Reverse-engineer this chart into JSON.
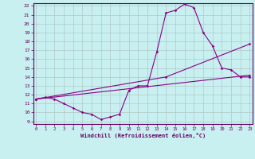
{
  "xlabel": "Windchill (Refroidissement éolien,°C)",
  "bg_color": "#c8f0f0",
  "line_color": "#880088",
  "grid_color": "#b0c8c8",
  "ylim": [
    9,
    22
  ],
  "xlim": [
    0,
    23
  ],
  "yticks": [
    9,
    10,
    11,
    12,
    13,
    14,
    15,
    16,
    17,
    18,
    19,
    20,
    21,
    22
  ],
  "xticks": [
    0,
    1,
    2,
    3,
    4,
    5,
    6,
    7,
    8,
    9,
    10,
    11,
    12,
    13,
    14,
    15,
    16,
    17,
    18,
    19,
    20,
    21,
    22,
    23
  ],
  "line1_x": [
    0,
    1,
    2,
    3,
    4,
    5,
    6,
    7,
    8,
    9,
    10,
    11,
    12,
    13,
    14,
    15,
    16,
    17,
    18,
    19,
    20,
    21,
    22,
    23
  ],
  "line1_y": [
    11.5,
    11.7,
    11.5,
    11.0,
    10.5,
    10.0,
    9.8,
    9.2,
    9.5,
    9.8,
    12.5,
    13.0,
    13.0,
    16.8,
    21.2,
    21.5,
    22.2,
    21.8,
    19.0,
    17.5,
    15.0,
    14.8,
    14.0,
    14.0
  ],
  "line2_x": [
    0,
    23
  ],
  "line2_y": [
    11.5,
    14.2
  ],
  "line3_x": [
    0,
    14,
    23
  ],
  "line3_y": [
    11.5,
    14.0,
    17.7
  ]
}
